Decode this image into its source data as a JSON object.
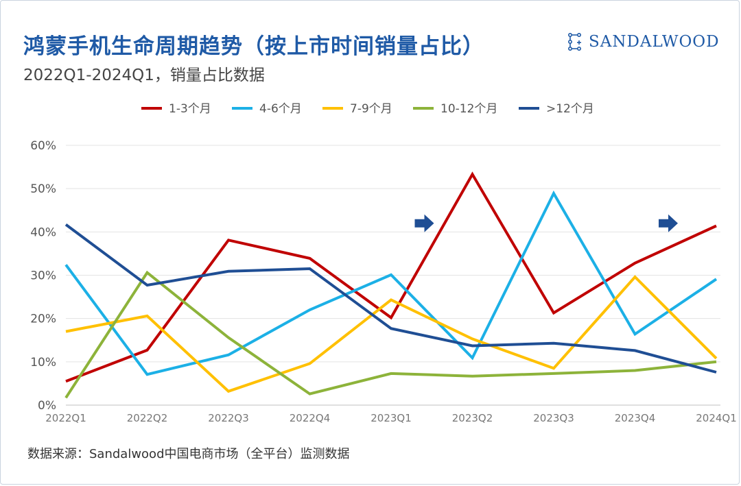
{
  "header": {
    "title": "鸿蒙手机生命周期趋势（按上市时间销量占比）",
    "subtitle": "2022Q1-2024Q1，销量占比数据",
    "logo_text": "SANDALWOOD"
  },
  "footer": {
    "source": "数据来源：Sandalwood中国电商市场（全平台）监测数据"
  },
  "chart_data": {
    "type": "line",
    "title": "鸿蒙手机生命周期趋势（按上市时间销量占比）",
    "subtitle": "2022Q1-2024Q1，销量占比数据",
    "xlabel": "",
    "ylabel": "",
    "ylim": [
      0,
      60
    ],
    "yticks": [
      0,
      10,
      20,
      30,
      40,
      50,
      60
    ],
    "ytick_labels": [
      "0%",
      "10%",
      "20%",
      "30%",
      "40%",
      "50%",
      "60%"
    ],
    "grid": true,
    "legend_position": "top",
    "categories": [
      "2022Q1",
      "2022Q2",
      "2022Q3",
      "2022Q4",
      "2023Q1",
      "2023Q2",
      "2023Q3",
      "2023Q4",
      "2024Q1"
    ],
    "series": [
      {
        "name": "1-3个月",
        "color": "#c00000",
        "values": [
          5.5,
          12.7,
          38.1,
          33.9,
          20.2,
          53.3,
          21.3,
          32.8,
          41.4
        ]
      },
      {
        "name": "4-6个月",
        "color": "#1cb0e6",
        "values": [
          32.4,
          7.1,
          11.6,
          22.0,
          30.1,
          10.9,
          48.9,
          16.4,
          29.1
        ]
      },
      {
        "name": "7-9个月",
        "color": "#ffc000",
        "values": [
          17.0,
          20.6,
          3.2,
          9.6,
          24.3,
          15.3,
          8.5,
          29.6,
          10.8
        ]
      },
      {
        "name": "10-12个月",
        "color": "#8db33a",
        "values": [
          1.7,
          30.6,
          15.6,
          2.6,
          7.3,
          6.7,
          7.3,
          8.0,
          10.0
        ]
      },
      {
        "name": ">12个月",
        "color": "#1f4e94",
        "values": [
          41.7,
          27.7,
          30.9,
          31.5,
          17.7,
          13.7,
          14.3,
          12.6,
          7.6
        ]
      }
    ],
    "annotations": [
      {
        "type": "arrow",
        "category": "2023Q2",
        "value": 42,
        "color": "#1f4e94"
      },
      {
        "type": "arrow",
        "category": "2024Q1",
        "value": 42,
        "color": "#1f4e94"
      }
    ]
  }
}
